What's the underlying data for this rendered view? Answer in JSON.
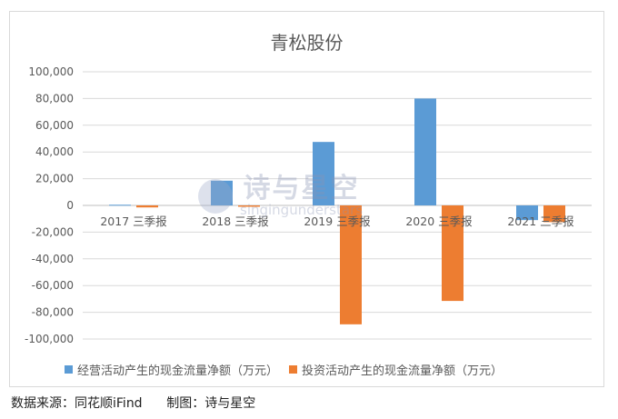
{
  "chart_data": {
    "type": "bar",
    "title": "青松股份",
    "categories": [
      "2017 三季报",
      "2018 三季报",
      "2019 三季报",
      "2020 三季报",
      "2021 三季报"
    ],
    "series": [
      {
        "name": "经营活动产生的现金流量净额（万元）",
        "color": "#5b9bd5",
        "values": [
          500,
          18500,
          47500,
          80000,
          -11000
        ]
      },
      {
        "name": "投资活动产生的现金流量净额（万元）",
        "color": "#ed7d31",
        "values": [
          -1500,
          -1000,
          -89000,
          -71500,
          -12500
        ]
      }
    ],
    "ylim": [
      -100000,
      100000
    ],
    "yticks": [
      "100,000",
      "80,000",
      "60,000",
      "40,000",
      "20,000",
      "0",
      "-20,000",
      "-40,000",
      "-60,000",
      "-80,000",
      "-100,000"
    ],
    "ytick_values": [
      100000,
      80000,
      60000,
      40000,
      20000,
      0,
      -20000,
      -40000,
      -60000,
      -80000,
      -100000
    ],
    "grid": true,
    "legend_position": "bottom"
  },
  "watermark": {
    "cn": "诗与星空",
    "en": "singingunderstars"
  },
  "footer": {
    "source": "数据来源：同花顺iFind",
    "author": "制图：诗与星空"
  }
}
